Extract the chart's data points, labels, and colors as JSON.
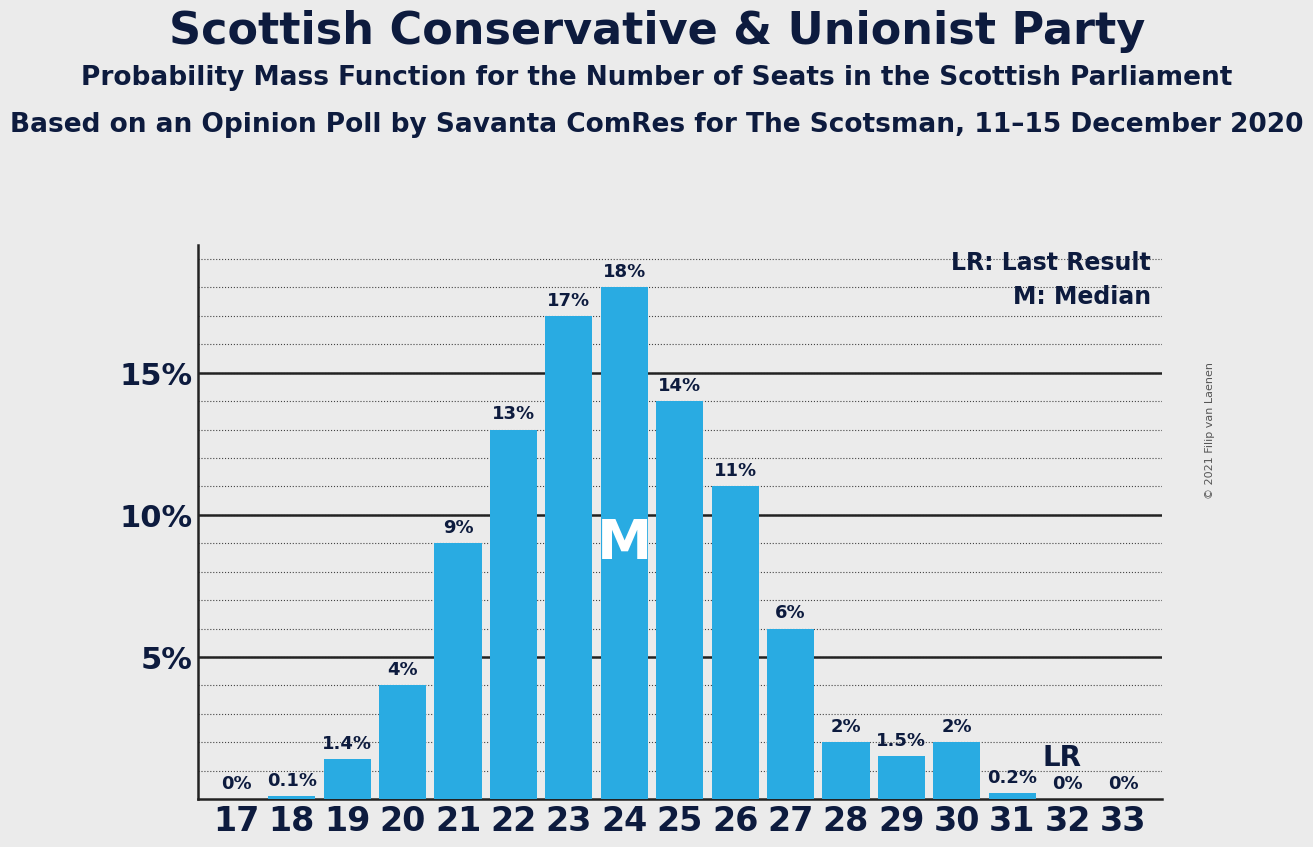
{
  "title": "Scottish Conservative & Unionist Party",
  "subtitle1": "Probability Mass Function for the Number of Seats in the Scottish Parliament",
  "subtitle2": "Based on an Opinion Poll by Savanta ComRes for The Scotsman, 11–15 December 2020",
  "copyright": "© 2021 Filip van Laenen",
  "lr_label": "LR: Last Result",
  "median_label": "M: Median",
  "seats": [
    17,
    18,
    19,
    20,
    21,
    22,
    23,
    24,
    25,
    26,
    27,
    28,
    29,
    30,
    31,
    32,
    33
  ],
  "probabilities": [
    0.0,
    0.1,
    1.4,
    4.0,
    9.0,
    13.0,
    17.0,
    18.0,
    14.0,
    11.0,
    6.0,
    2.0,
    1.5,
    2.0,
    0.2,
    0.0,
    0.0
  ],
  "bar_color": "#29ABE2",
  "median_seat": 24,
  "lr_seat": 31,
  "bg_color": "#EBEBEB",
  "axis_color": "#0d1b3e",
  "yticks": [
    5,
    10,
    15
  ],
  "ymax": 19.5,
  "bar_label_fontsize": 13,
  "title_fontsize": 32,
  "subtitle_fontsize": 19,
  "ytick_fontsize": 22,
  "xtick_fontsize": 24,
  "legend_fontsize": 17
}
